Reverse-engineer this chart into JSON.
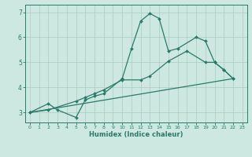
{
  "xlabel": "Humidex (Indice chaleur)",
  "xlim": [
    -0.5,
    23.5
  ],
  "ylim": [
    2.6,
    7.3
  ],
  "yticks": [
    3,
    4,
    5,
    6,
    7
  ],
  "xticks": [
    0,
    1,
    2,
    3,
    4,
    5,
    6,
    7,
    8,
    9,
    10,
    11,
    12,
    13,
    14,
    15,
    16,
    17,
    18,
    19,
    20,
    21,
    22,
    23
  ],
  "bg_color": "#cce8e0",
  "grid_color": "#aaccbf",
  "line_color": "#2a7a6a",
  "line1_x": [
    0,
    2,
    3,
    5,
    6,
    7,
    8,
    10,
    11,
    12,
    13,
    14,
    15,
    16,
    18,
    19,
    20,
    21,
    22
  ],
  "line1_y": [
    3.0,
    3.35,
    3.1,
    2.8,
    3.5,
    3.65,
    3.75,
    4.35,
    5.55,
    6.65,
    6.95,
    6.75,
    5.45,
    5.55,
    6.0,
    5.85,
    5.0,
    4.7,
    4.35
  ],
  "line2_x": [
    0,
    2,
    5,
    6,
    7,
    8,
    10,
    12,
    13,
    15,
    17,
    19,
    20,
    21,
    22
  ],
  "line2_y": [
    3.0,
    3.1,
    3.45,
    3.6,
    3.75,
    3.9,
    4.3,
    4.3,
    4.45,
    5.05,
    5.45,
    5.0,
    5.0,
    4.7,
    4.35
  ],
  "line3_x": [
    0,
    22
  ],
  "line3_y": [
    3.0,
    4.35
  ]
}
